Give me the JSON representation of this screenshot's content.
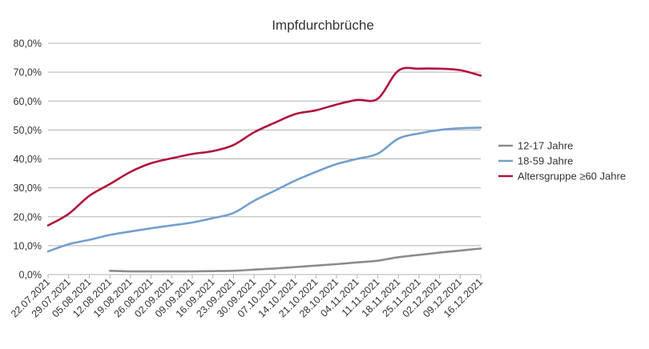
{
  "chart_data": {
    "type": "line",
    "title": "Impfdurchbrüche",
    "xlabel": "",
    "ylabel": "",
    "ylim": [
      0,
      80
    ],
    "y_ticks": [
      "0,0%",
      "10,0%",
      "20,0%",
      "30,0%",
      "40,0%",
      "50,0%",
      "60,0%",
      "70,0%",
      "80,0%"
    ],
    "grid": true,
    "legend_position": "right",
    "categories": [
      "22.07.2021",
      "29.07.2021",
      "05.08.2021",
      "12.08.2021",
      "19.08.2021",
      "26.08.2021",
      "02.09.2021",
      "09.09.2021",
      "16.09.2021",
      "23.09.2021",
      "30.09.2021",
      "07.10.2021",
      "14.10.2021",
      "21.10.2021",
      "28.10.2021",
      "04.11.2021",
      "11.11.2021",
      "18.11.2021",
      "25.11.2021",
      "02.12.2021",
      "09.12.2021",
      "16.12.2021"
    ],
    "series": [
      {
        "name": "12-17 Jahre",
        "color": "#8c8c8c",
        "values": [
          null,
          null,
          null,
          1.3,
          1.1,
          1.1,
          1.1,
          1.1,
          1.2,
          1.3,
          1.7,
          2.1,
          2.6,
          3.1,
          3.6,
          4.2,
          4.8,
          6.0,
          6.8,
          7.6,
          8.3,
          9.0
        ]
      },
      {
        "name": "18-59 Jahre",
        "color": "#729fcf",
        "values": [
          8.0,
          10.5,
          12.0,
          13.7,
          14.9,
          16.0,
          17.0,
          18.0,
          19.5,
          21.3,
          25.5,
          29.0,
          32.5,
          35.5,
          38.2,
          40.0,
          41.8,
          47.0,
          48.8,
          50.0,
          50.6,
          50.8
        ]
      },
      {
        "name": "Altersgruppe ≥60 Jahre",
        "color": "#b0143c",
        "values": [
          17.0,
          21.0,
          27.2,
          31.3,
          35.5,
          38.5,
          40.2,
          41.7,
          42.7,
          44.8,
          49.2,
          52.5,
          55.5,
          56.8,
          58.8,
          60.4,
          60.8,
          70.5,
          71.2,
          71.2,
          70.7,
          68.8
        ]
      }
    ]
  }
}
